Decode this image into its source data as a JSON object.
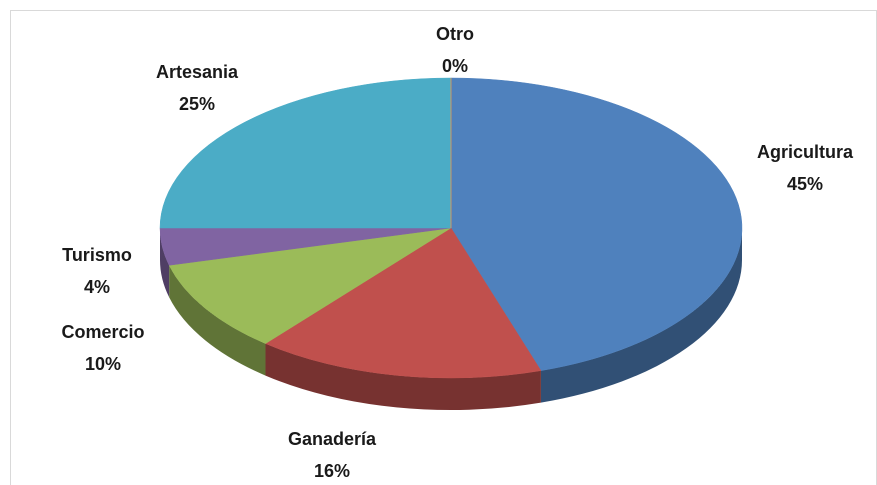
{
  "chart_data": {
    "type": "pie3d",
    "categories": [
      "Agricultura",
      "Ganadería",
      "Comercio",
      "Turismo",
      "Artesania",
      "Otro"
    ],
    "values": [
      45,
      16,
      10,
      4,
      25,
      0
    ],
    "value_labels": [
      "45%",
      "16%",
      "10%",
      "4%",
      "25%",
      "0%"
    ],
    "colors": [
      "#4f81bd",
      "#c0504d",
      "#9bbb59",
      "#8064a2",
      "#4bacc6",
      "#f79646"
    ]
  }
}
